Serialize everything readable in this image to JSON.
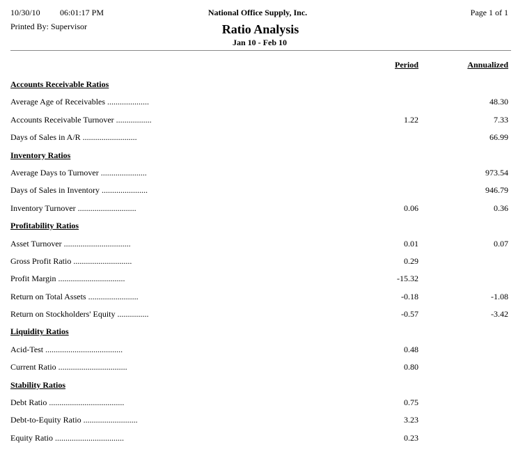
{
  "header": {
    "date": "10/30/10",
    "time": "06:01:17 PM",
    "printed_by": "Printed By: Supervisor",
    "company": "National Office Supply, Inc.",
    "title": "Ratio Analysis",
    "period_range": "Jan 10 - Feb 10",
    "page": "Page 1 of 1"
  },
  "columns": {
    "period": "Period",
    "annualized": "Annualized"
  },
  "sections": [
    {
      "title": "Accounts Receivable Ratios",
      "rows": [
        {
          "label": "Average Age of Receivables ....................",
          "period": "",
          "annualized": "48.30"
        },
        {
          "label": "Accounts Receivable Turnover .................",
          "period": "1.22",
          "annualized": "7.33"
        },
        {
          "label": "Days of Sales in A/R ..........................",
          "period": "",
          "annualized": "66.99"
        }
      ]
    },
    {
      "title": "Inventory Ratios",
      "rows": [
        {
          "label": "Average Days to Turnover ......................",
          "period": "",
          "annualized": "973.54"
        },
        {
          "label": "Days of Sales in Inventory ......................",
          "period": "",
          "annualized": "946.79"
        },
        {
          "label": "Inventory Turnover ............................",
          "period": "0.06",
          "annualized": "0.36"
        }
      ]
    },
    {
      "title": "Profitability Ratios",
      "rows": [
        {
          "label": "Asset Turnover ................................",
          "period": "0.01",
          "annualized": "0.07"
        },
        {
          "label": "Gross Profit Ratio ............................",
          "period": "0.29",
          "annualized": ""
        },
        {
          "label": "Profit Margin ................................",
          "period": "-15.32",
          "annualized": ""
        },
        {
          "label": "Return on Total Assets ........................",
          "period": "-0.18",
          "annualized": "-1.08"
        },
        {
          "label": "Return on Stockholders' Equity ...............",
          "period": "-0.57",
          "annualized": "-3.42"
        }
      ]
    },
    {
      "title": "Liquidity Ratios",
      "rows": [
        {
          "label": "Acid-Test .....................................",
          "period": "0.48",
          "annualized": ""
        },
        {
          "label": "Current Ratio .................................",
          "period": "0.80",
          "annualized": ""
        }
      ]
    },
    {
      "title": "Stability Ratios",
      "rows": [
        {
          "label": "Debt Ratio ....................................",
          "period": "0.75",
          "annualized": ""
        },
        {
          "label": "Debt-to-Equity Ratio ..........................",
          "period": "3.23",
          "annualized": ""
        },
        {
          "label": "Equity Ratio .................................",
          "period": "0.23",
          "annualized": ""
        }
      ]
    }
  ]
}
